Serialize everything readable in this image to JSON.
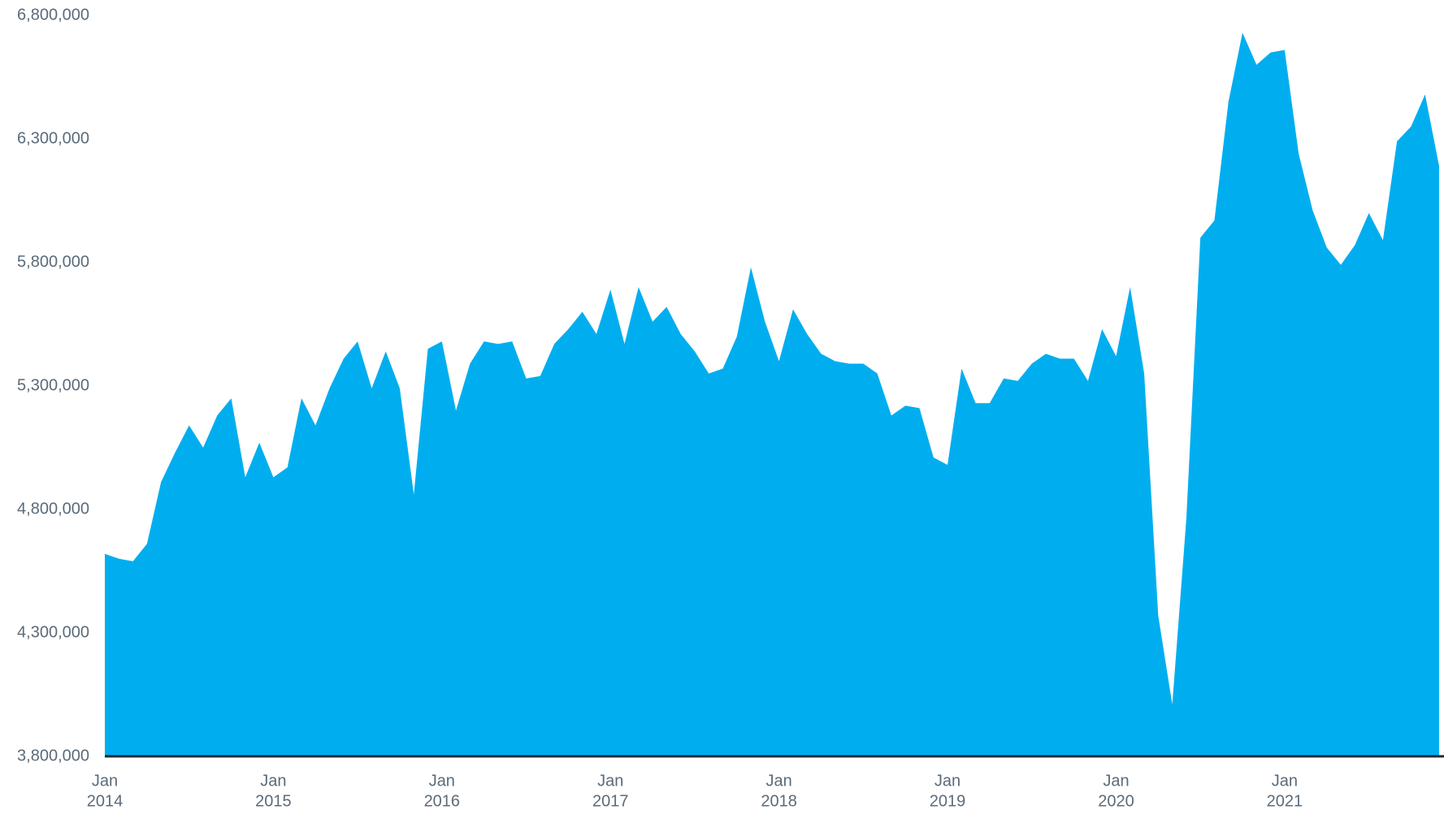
{
  "chart_data": {
    "type": "area",
    "x": [
      "2014-01",
      "2014-02",
      "2014-03",
      "2014-04",
      "2014-05",
      "2014-06",
      "2014-07",
      "2014-08",
      "2014-09",
      "2014-10",
      "2014-11",
      "2014-12",
      "2015-01",
      "2015-02",
      "2015-03",
      "2015-04",
      "2015-05",
      "2015-06",
      "2015-07",
      "2015-08",
      "2015-09",
      "2015-10",
      "2015-11",
      "2015-12",
      "2016-01",
      "2016-02",
      "2016-03",
      "2016-04",
      "2016-05",
      "2016-06",
      "2016-07",
      "2016-08",
      "2016-09",
      "2016-10",
      "2016-11",
      "2016-12",
      "2017-01",
      "2017-02",
      "2017-03",
      "2017-04",
      "2017-05",
      "2017-06",
      "2017-07",
      "2017-08",
      "2017-09",
      "2017-10",
      "2017-11",
      "2017-12",
      "2018-01",
      "2018-02",
      "2018-03",
      "2018-04",
      "2018-05",
      "2018-06",
      "2018-07",
      "2018-08",
      "2018-09",
      "2018-10",
      "2018-11",
      "2018-12",
      "2019-01",
      "2019-02",
      "2019-03",
      "2019-04",
      "2019-05",
      "2019-06",
      "2019-07",
      "2019-08",
      "2019-09",
      "2019-10",
      "2019-11",
      "2019-12",
      "2020-01",
      "2020-02",
      "2020-03",
      "2020-04",
      "2020-05",
      "2020-06",
      "2020-07",
      "2020-08",
      "2020-09",
      "2020-10",
      "2020-11",
      "2020-12",
      "2021-01",
      "2021-02",
      "2021-03",
      "2021-04",
      "2021-05",
      "2021-06",
      "2021-07",
      "2021-08",
      "2021-09",
      "2021-10",
      "2021-11",
      "2021-12"
    ],
    "series": [
      {
        "color": "#00aeef",
        "values": [
          4620000,
          4600000,
          4590000,
          4660000,
          4910000,
          5030000,
          5140000,
          5050000,
          5180000,
          5250000,
          4930000,
          5070000,
          4930000,
          4970000,
          5250000,
          5140000,
          5290000,
          5410000,
          5480000,
          5290000,
          5440000,
          5290000,
          4860000,
          5450000,
          5480000,
          5200000,
          5390000,
          5480000,
          5470000,
          5480000,
          5330000,
          5340000,
          5470000,
          5530000,
          5600000,
          5510000,
          5690000,
          5470000,
          5700000,
          5560000,
          5620000,
          5510000,
          5440000,
          5350000,
          5370000,
          5500000,
          5780000,
          5560000,
          5400000,
          5610000,
          5510000,
          5430000,
          5400000,
          5390000,
          5390000,
          5350000,
          5180000,
          5220000,
          5210000,
          5010000,
          4980000,
          5370000,
          5230000,
          5230000,
          5330000,
          5320000,
          5390000,
          5430000,
          5410000,
          5410000,
          5320000,
          5530000,
          5420000,
          5700000,
          5350000,
          4370000,
          4010000,
          4760000,
          5900000,
          5970000,
          6450000,
          6730000,
          6600000,
          6650000,
          6660000,
          6240000,
          6010000,
          5860000,
          5790000,
          5870000,
          6000000,
          5890000,
          6290000,
          6350000,
          6480000,
          6190000
        ]
      }
    ],
    "ylim": [
      3800000,
      6800000
    ],
    "yticks": [
      {
        "value": 3800000,
        "label": "3,800,000"
      },
      {
        "value": 4300000,
        "label": "4,300,000"
      },
      {
        "value": 4800000,
        "label": "4,800,000"
      },
      {
        "value": 5300000,
        "label": "5,300,000"
      },
      {
        "value": 5800000,
        "label": "5,800,000"
      },
      {
        "value": 6300000,
        "label": "6,300,000"
      },
      {
        "value": 6800000,
        "label": "6,800,000"
      }
    ],
    "xticks": [
      {
        "value": "2014-01",
        "label": [
          "Jan",
          "2014"
        ]
      },
      {
        "value": "2015-01",
        "label": [
          "Jan",
          "2015"
        ]
      },
      {
        "value": "2016-01",
        "label": [
          "Jan",
          "2016"
        ]
      },
      {
        "value": "2017-01",
        "label": [
          "Jan",
          "2017"
        ]
      },
      {
        "value": "2018-01",
        "label": [
          "Jan",
          "2018"
        ]
      },
      {
        "value": "2019-01",
        "label": [
          "Jan",
          "2019"
        ]
      },
      {
        "value": "2020-01",
        "label": [
          "Jan",
          "2020"
        ]
      },
      {
        "value": "2021-01",
        "label": [
          "Jan",
          "2021"
        ]
      }
    ],
    "grid": false
  }
}
